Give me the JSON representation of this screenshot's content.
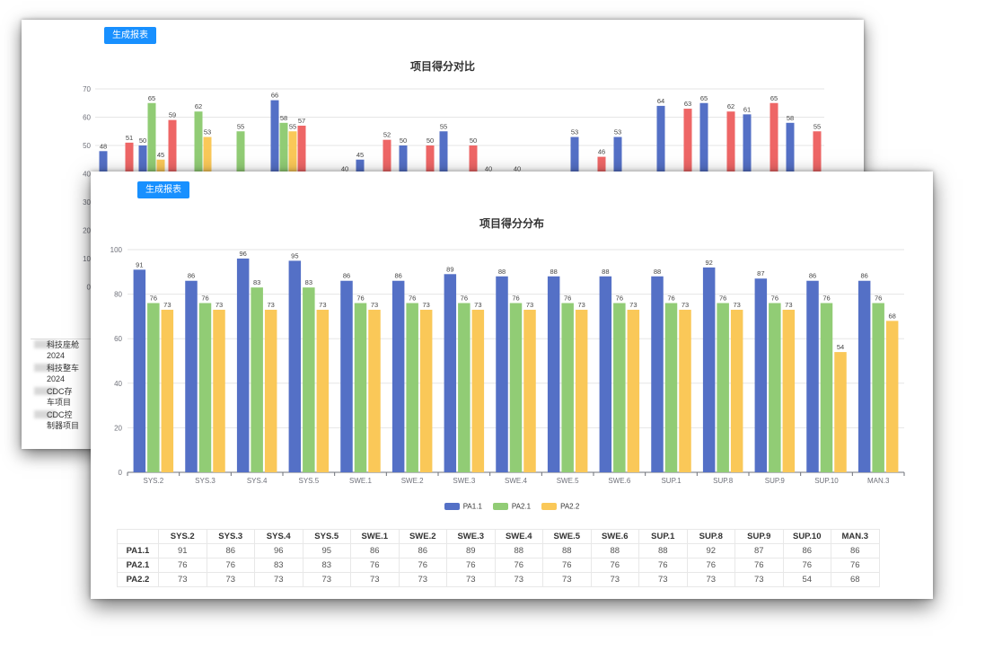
{
  "back_panel": {
    "button_label": "生成报表",
    "title": "项目得分对比",
    "side_rows": [
      {
        "line1": "科技座舱",
        "line2": "2024"
      },
      {
        "line1": "科技整车",
        "line2": "2024"
      },
      {
        "line1": "CDC存",
        "line2": "车项目"
      },
      {
        "line1": "CDC控",
        "line2": "制器项目"
      }
    ],
    "chart_data": {
      "type": "bar",
      "ylim": [
        0,
        70
      ],
      "yticks": [
        0,
        10,
        20,
        30,
        40,
        50,
        60,
        70
      ],
      "visible_ylim": [
        40,
        70
      ],
      "series_colors": [
        "#5470c6",
        "#91cc75",
        "#fac858",
        "#ee6666"
      ],
      "bars": [
        {
          "s": 0,
          "v": 48,
          "label": "48"
        },
        {
          "s": 3,
          "v": 51,
          "label": "51"
        },
        {
          "s": 0,
          "v": 50,
          "label": "50"
        },
        {
          "s": 1,
          "v": 65,
          "label": "65"
        },
        {
          "s": 2,
          "v": 45,
          "label": "45"
        },
        {
          "s": 3,
          "v": 59,
          "label": "59"
        },
        {
          "s": 1,
          "v": 62,
          "label": "62"
        },
        {
          "s": 2,
          "v": 53,
          "label": "53"
        },
        {
          "s": 1,
          "v": 55,
          "label": "55"
        },
        {
          "s": 0,
          "v": 66,
          "label": "66"
        },
        {
          "s": 1,
          "v": 58,
          "label": "58"
        },
        {
          "s": 2,
          "v": 55,
          "label": "55"
        },
        {
          "s": 3,
          "v": 57,
          "label": "57"
        },
        {
          "s": 0,
          "v": 40,
          "label": "40"
        },
        {
          "s": 0,
          "v": 45,
          "label": "45"
        },
        {
          "s": 3,
          "v": 52,
          "label": "52"
        },
        {
          "s": 0,
          "v": 50,
          "label": "50"
        },
        {
          "s": 3,
          "v": 50,
          "label": "50"
        },
        {
          "s": 0,
          "v": 55,
          "label": "55"
        },
        {
          "s": 3,
          "v": 50,
          "label": "50"
        },
        {
          "s": 0,
          "v": 40,
          "label": "40"
        },
        {
          "s": 0,
          "v": 40,
          "label": "40"
        },
        {
          "s": 0,
          "v": 53,
          "label": "53"
        },
        {
          "s": 3,
          "v": 46,
          "label": "46"
        },
        {
          "s": 0,
          "v": 53,
          "label": "53"
        },
        {
          "s": 0,
          "v": 64,
          "label": "64"
        },
        {
          "s": 3,
          "v": 63,
          "label": "63"
        },
        {
          "s": 0,
          "v": 65,
          "label": "65"
        },
        {
          "s": 3,
          "v": 62,
          "label": "62"
        },
        {
          "s": 0,
          "v": 61,
          "label": "61"
        },
        {
          "s": 3,
          "v": 65,
          "label": "65"
        },
        {
          "s": 0,
          "v": 58,
          "label": "58"
        },
        {
          "s": 3,
          "v": 55,
          "label": "55"
        }
      ]
    }
  },
  "front_panel": {
    "button_label": "生成报表",
    "title": "项目得分分布",
    "chart_data": {
      "type": "bar",
      "categories": [
        "SYS.2",
        "SYS.3",
        "SYS.4",
        "SYS.5",
        "SWE.1",
        "SWE.2",
        "SWE.3",
        "SWE.4",
        "SWE.5",
        "SWE.6",
        "SUP.1",
        "SUP.8",
        "SUP.9",
        "SUP.10",
        "MAN.3"
      ],
      "series": [
        {
          "name": "PA1.1",
          "color": "#5470c6",
          "values": [
            91,
            86,
            96,
            95,
            86,
            86,
            89,
            88,
            88,
            88,
            88,
            92,
            87,
            86,
            86
          ]
        },
        {
          "name": "PA2.1",
          "color": "#91cc75",
          "values": [
            76,
            76,
            83,
            83,
            76,
            76,
            76,
            76,
            76,
            76,
            76,
            76,
            76,
            76,
            76
          ]
        },
        {
          "name": "PA2.2",
          "color": "#fac858",
          "values": [
            73,
            73,
            73,
            73,
            73,
            73,
            73,
            73,
            73,
            73,
            73,
            73,
            73,
            54,
            68
          ]
        }
      ],
      "ylim": [
        0,
        100
      ],
      "yticks": [
        0,
        20,
        40,
        60,
        80,
        100
      ],
      "xlabel": "",
      "ylabel": ""
    },
    "table": {
      "rows": [
        {
          "name": "PA1.1",
          "values": [
            "91",
            "86",
            "96",
            "95",
            "86",
            "86",
            "89",
            "88",
            "88",
            "88",
            "88",
            "92",
            "87",
            "86",
            "86"
          ]
        },
        {
          "name": "PA2.1",
          "values": [
            "76",
            "76",
            "83",
            "83",
            "76",
            "76",
            "76",
            "76",
            "76",
            "76",
            "76",
            "76",
            "76",
            "76",
            "76"
          ]
        },
        {
          "name": "PA2.2",
          "values": [
            "73",
            "73",
            "73",
            "73",
            "73",
            "73",
            "73",
            "73",
            "73",
            "73",
            "73",
            "73",
            "73",
            "54",
            "68"
          ]
        }
      ]
    }
  }
}
